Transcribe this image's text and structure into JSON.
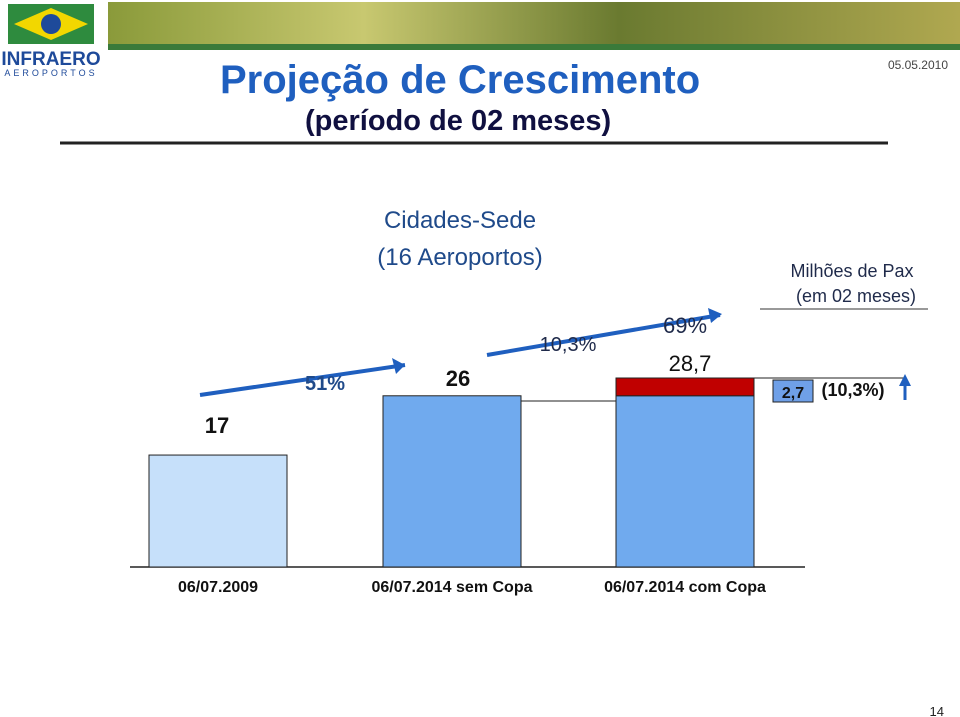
{
  "header": {
    "logo_name": "INFRAERO",
    "logo_sub": "AEROPORTOS",
    "title": "Projeção de Crescimento",
    "subtitle": "(período de 02 meses)",
    "date": "05.05.2010"
  },
  "chart_data": {
    "type": "bar",
    "stacked": true,
    "title": "Cidades-Sede",
    "subtitle": "(16 Aeroportos)",
    "unit_label": "Milhões de Pax",
    "unit_sublabel": "(em 02 meses)",
    "categories": [
      "06/07.2009",
      "06/07.2014  sem Copa",
      "06/07.2014 com Copa"
    ],
    "series": [
      {
        "colors": [
          "#c6e0fa",
          "#70aaee",
          "#70aaee"
        ],
        "values": [
          17,
          26,
          26
        ]
      },
      {
        "color": "#c00000",
        "values": [
          null,
          null,
          2.7
        ],
        "value_labels": [
          null,
          null,
          "2,7"
        ]
      }
    ],
    "totals": [
      17,
      26,
      28.7
    ],
    "total_labels": [
      "17",
      "26",
      "28,7"
    ],
    "annotations": [
      "51%",
      "10,3%",
      "69%",
      "(10,3%)"
    ]
  },
  "footer": {
    "page": "14"
  }
}
